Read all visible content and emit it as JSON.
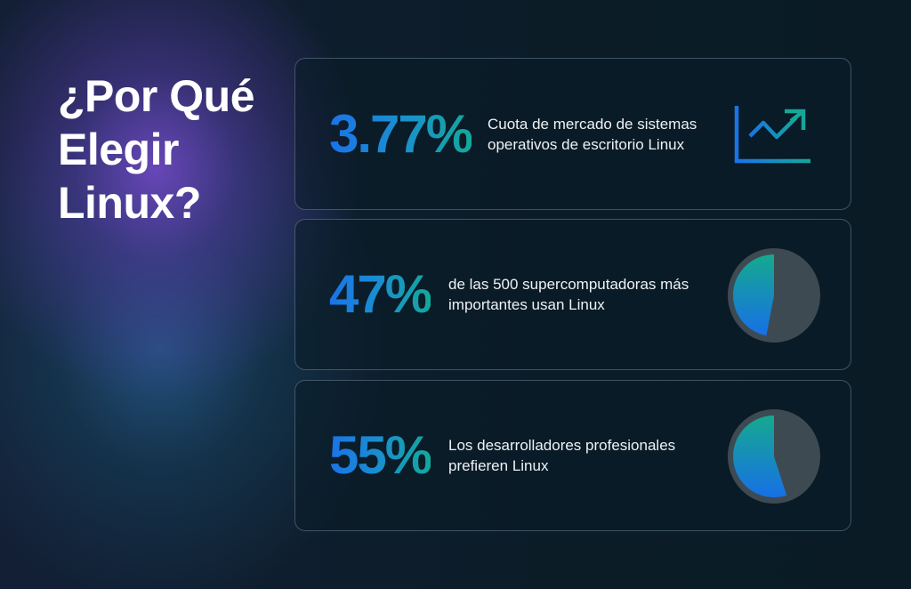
{
  "title": {
    "lines": [
      "¿Por Qué",
      "Elegir",
      "Linux?"
    ]
  },
  "colors": {
    "accent_blue": "#1a73e8",
    "accent_teal": "#14a89a",
    "pie_remainder": "#3e4a52",
    "background": "#0b1c27"
  },
  "cards": [
    {
      "stat": "3.77%",
      "description": "Cuota de mercado de sistemas operativos de escritorio Linux",
      "icon": "trending-up-chart-icon"
    },
    {
      "stat": "47%",
      "description": "de las 500 supercomputadoras más importantes usan Linux",
      "icon": "pie-chart-icon",
      "pie_percent": 47
    },
    {
      "stat": "55%",
      "description": "Los desarrolladores profesionales prefieren Linux",
      "icon": "pie-chart-icon",
      "pie_percent": 55
    }
  ]
}
